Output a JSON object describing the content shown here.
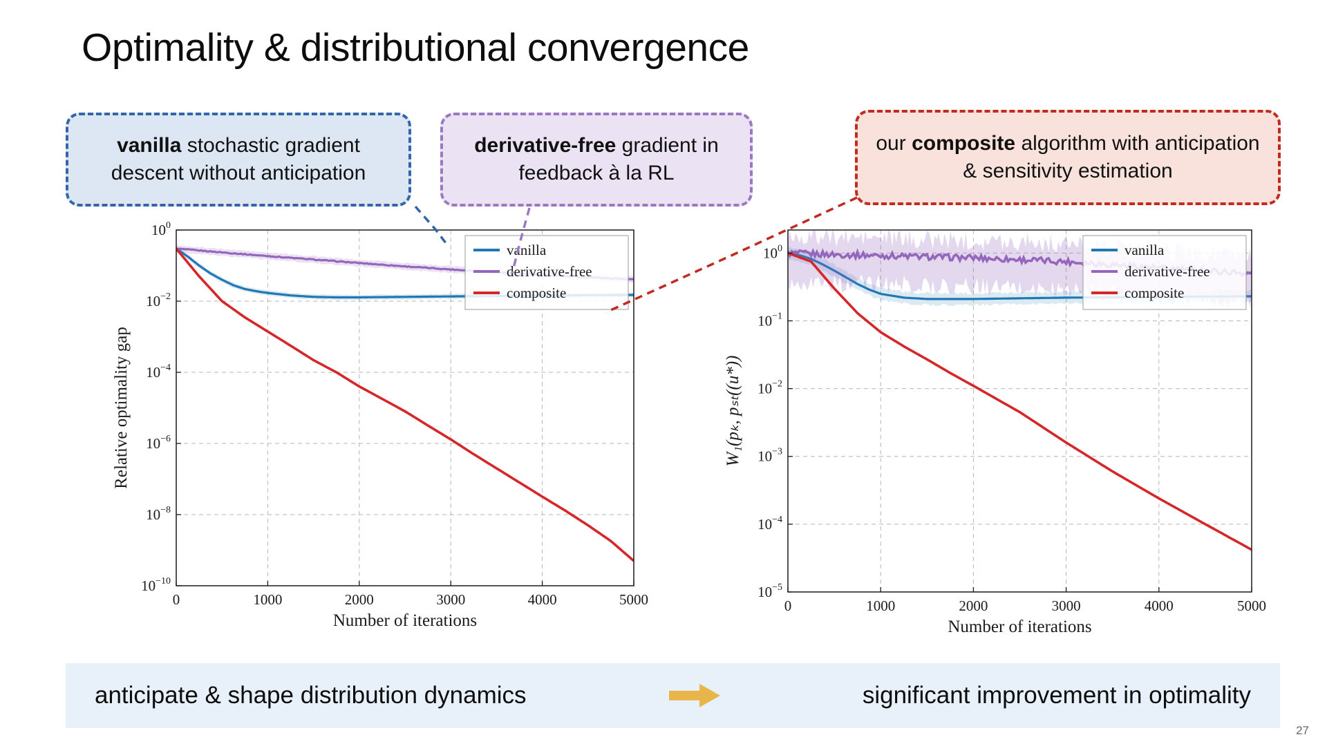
{
  "slide": {
    "title": "Optimality & distributional convergence",
    "page_number": "27"
  },
  "callouts": [
    {
      "pre": "",
      "bold": "vanilla",
      "post": " stochastic gradient descent without anticipation",
      "border_color": "#3565a9",
      "bg_color": "#dde7f3"
    },
    {
      "pre": "",
      "bold": "derivative-free",
      "post": " gradient in feedback à la RL",
      "border_color": "#9a79c2",
      "bg_color": "#ebe3f3"
    },
    {
      "pre": "our ",
      "bold": "composite",
      "post": " algorithm with anticipation & sensitivity estimation",
      "border_color": "#c02a20",
      "bg_color": "#f9e2dc"
    }
  ],
  "bottom_bar": {
    "left_text": "anticipate & shape distribution dynamics",
    "right_text": "significant improvement in optimality",
    "bg_color": "#e8f1fa",
    "arrow_color": "#e8b54a"
  },
  "chart_data": [
    {
      "type": "line",
      "title": "",
      "xlabel": "Number of iterations",
      "ylabel": "Relative optimality gap",
      "xlim": [
        0,
        5000
      ],
      "xticks": [
        0,
        1000,
        2000,
        3000,
        4000,
        5000
      ],
      "yscale": "log",
      "ylim_exp": [
        -10,
        0
      ],
      "ytick_exps": [
        0,
        -2,
        -4,
        -6,
        -8,
        -10
      ],
      "grid": true,
      "legend_position": "upper right",
      "series": [
        {
          "name": "vanilla",
          "color": "#1f77b4",
          "width": 3.2,
          "x": [
            0,
            125,
            250,
            375,
            500,
            625,
            750,
            875,
            1000,
            1250,
            1500,
            1750,
            2000,
            2500,
            3000,
            3500,
            4000,
            4500,
            5000
          ],
          "y": [
            0.3,
            0.18,
            0.1,
            0.06,
            0.04,
            0.028,
            0.022,
            0.019,
            0.017,
            0.0145,
            0.0132,
            0.0128,
            0.0128,
            0.0132,
            0.0136,
            0.014,
            0.0144,
            0.0147,
            0.015
          ],
          "band": {
            "low_mult": 0.85,
            "high_mult": 1.18,
            "opacity": 0.16,
            "jitter": 0.015
          }
        },
        {
          "name": "derivative-free",
          "color": "#9467bd",
          "width": 3.2,
          "jitter": 0.012,
          "x": [
            0,
            500,
            1000,
            1500,
            2000,
            2500,
            3000,
            3500,
            4000,
            4500,
            5000
          ],
          "y": [
            0.3,
            0.235,
            0.185,
            0.148,
            0.118,
            0.095,
            0.078,
            0.065,
            0.055,
            0.047,
            0.041
          ],
          "band": {
            "low_mult": 0.8,
            "high_mult": 1.25,
            "opacity": 0.2,
            "jitter": 0.02
          }
        },
        {
          "name": "composite",
          "color": "#d62728",
          "width": 3.6,
          "x": [
            0,
            250,
            500,
            750,
            1000,
            1250,
            1500,
            1750,
            2000,
            2250,
            2500,
            2750,
            3000,
            3250,
            3500,
            3750,
            4000,
            4250,
            4500,
            4750,
            5000
          ],
          "y": [
            0.3,
            0.05,
            0.01,
            0.0035,
            0.0014,
            0.00056,
            0.00022,
            0.0001,
            4e-05,
            1.8e-05,
            8e-06,
            3.2e-06,
            1.3e-06,
            5e-07,
            2e-07,
            8e-08,
            3.2e-08,
            1.3e-08,
            5e-09,
            1.8e-09,
            5e-10
          ]
        }
      ]
    },
    {
      "type": "line",
      "title": "",
      "xlabel": "Number of iterations",
      "ylabel": "W₁(pₖ, pₛₜ((u*))",
      "ylabel_italic": true,
      "xlim": [
        0,
        5000
      ],
      "xticks": [
        0,
        1000,
        2000,
        3000,
        4000,
        5000
      ],
      "yscale": "log",
      "ylim_exp": [
        -5,
        0.34
      ],
      "ytick_exps": [
        0,
        -1,
        -2,
        -3,
        -4,
        -5
      ],
      "grid": true,
      "legend_position": "upper right",
      "series": [
        {
          "name": "vanilla",
          "color": "#1f77b4",
          "width": 3.2,
          "x": [
            0,
            125,
            250,
            375,
            500,
            625,
            750,
            875,
            1000,
            1250,
            1500,
            2000,
            2500,
            3000,
            3500,
            4000,
            4500,
            5000
          ],
          "y": [
            1.0,
            0.93,
            0.82,
            0.68,
            0.55,
            0.44,
            0.35,
            0.29,
            0.25,
            0.22,
            0.21,
            0.21,
            0.215,
            0.22,
            0.222,
            0.226,
            0.228,
            0.23
          ],
          "band": {
            "low_mult": 0.82,
            "high_mult": 1.22,
            "opacity": 0.16,
            "jitter": 0.02
          }
        },
        {
          "name": "derivative-free",
          "color": "#9467bd",
          "width": 3.6,
          "jitter": 0.045,
          "x": [
            0,
            500,
            1000,
            1500,
            2000,
            2500,
            3000,
            3500,
            4000,
            4500,
            5000
          ],
          "y": [
            1.0,
            0.95,
            0.92,
            0.88,
            0.85,
            0.8,
            0.75,
            0.68,
            0.6,
            0.55,
            0.5
          ],
          "band": {
            "low_mult": 0.38,
            "high_mult": 1.8,
            "opacity": 0.26,
            "jitter": 0.14
          }
        },
        {
          "name": "composite",
          "color": "#d62728",
          "width": 3.6,
          "x": [
            0,
            250,
            500,
            750,
            1000,
            1250,
            1500,
            1750,
            2000,
            2500,
            3000,
            3500,
            4000,
            4500,
            5000
          ],
          "y": [
            1.0,
            0.75,
            0.3,
            0.13,
            0.068,
            0.042,
            0.027,
            0.017,
            0.011,
            0.0045,
            0.0016,
            0.0006,
            0.00024,
            0.0001,
            4.2e-05
          ]
        }
      ]
    }
  ]
}
